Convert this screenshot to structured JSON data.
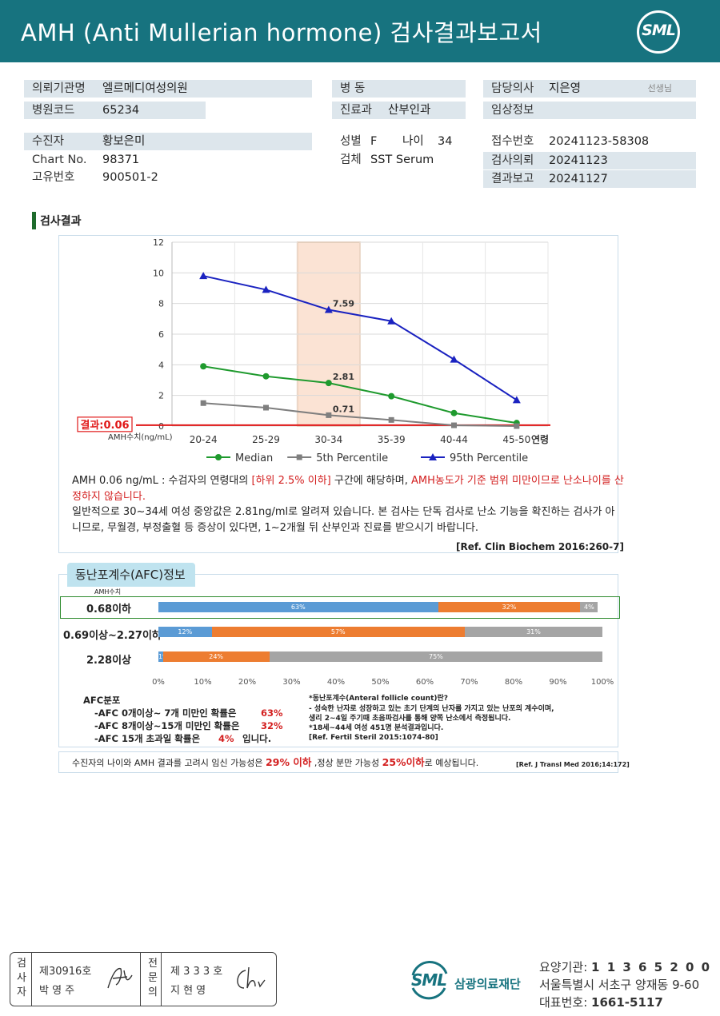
{
  "header": {
    "title": "AMH (Anti Mullerian hormone) 검사결과보고서",
    "logo": "SML"
  },
  "info": {
    "hospital_label": "의뢰기관명",
    "hospital": "엘르메디여성의원",
    "hospital_code_label": "병원코드",
    "hospital_code": "65234",
    "ward_label": "병  동",
    "dept_label": "진료과",
    "dept": "산부인과",
    "doctor_label": "담당의사",
    "doctor": "지은영",
    "doctor_suffix": "선생님",
    "clinical_label": "임상정보",
    "patient_label": "수진자",
    "patient": "황보은미",
    "chart_label": "Chart No.",
    "chart_no": "98371",
    "id_label": "고유번호",
    "id_no": "900501-2",
    "sex_label": "성별",
    "sex": "F",
    "age_label": "나이",
    "age": "34",
    "specimen_label": "검체",
    "specimen": "SST Serum",
    "receipt_label": "접수번호",
    "receipt_no": "20241123-58308",
    "request_label": "검사의뢰",
    "request_date": "20241123",
    "report_label": "결과보고",
    "report_date": "20241127"
  },
  "section_title": "검사결과",
  "chart_data": {
    "type": "line",
    "categories": [
      "20-24",
      "25-29",
      "30-34",
      "35-39",
      "40-44",
      "45-50"
    ],
    "xlabel": "연령",
    "ylabel": "AMH수치(ng/mL)",
    "ylim": [
      0,
      12
    ],
    "yticks": [
      0,
      2,
      4,
      6,
      8,
      10,
      12
    ],
    "highlight_category": "30-34",
    "result_label": "결과:0.06",
    "result_value": 0.06,
    "series": [
      {
        "name": "Median",
        "color": "#1f9a2e",
        "marker": "circle",
        "values": [
          3.9,
          3.25,
          2.81,
          1.95,
          0.85,
          0.2
        ]
      },
      {
        "name": "5th Percentile",
        "color": "#7f7f7f",
        "marker": "square",
        "values": [
          1.5,
          1.2,
          0.71,
          0.4,
          0.05,
          0.0
        ]
      },
      {
        "name": "95th Percentile",
        "color": "#1a22c0",
        "marker": "triangle",
        "values": [
          9.8,
          8.9,
          7.59,
          6.85,
          4.35,
          1.7
        ]
      }
    ],
    "annotations": [
      "7.59",
      "2.81",
      "0.71"
    ]
  },
  "comment": {
    "p1_a": "AMH  0.06 ng/mL : 수검자의 연령대의 ",
    "p1_b": "[하위 2.5% 이하]",
    "p1_c": " 구간에 해당하며, ",
    "p1_d": "AMH농도가 기준 범위 미만이므로 난소나이를 산정하지 않습니다.",
    "p2": "일반적으로 30~34세 여성 중앙값은 2.81ng/ml로 알려져 있습니다. 본 검사는 단독 검사로 난소 기능을 확진하는 검사가 아니므로, 무월경, 부정출혈 등 증상이 있다면, 1~2개월 뒤 산부인과 진료를 받으시기 바랍니다.",
    "ref": "[Ref. Clin Biochem 2016:260-7]"
  },
  "afc": {
    "title": "동난포계수(AFC)정보",
    "col_label": "AMH수치",
    "rows": [
      {
        "label": "0.68이하",
        "segments": [
          63,
          32,
          4
        ],
        "seg_labels": [
          "63%",
          "32%",
          "4%"
        ]
      },
      {
        "label": "0.69이상~2.27이하",
        "segments": [
          12,
          57,
          31
        ],
        "seg_labels": [
          "12%",
          "57%",
          "31%"
        ]
      },
      {
        "label": "2.28이상",
        "segments": [
          1,
          24,
          75
        ],
        "seg_labels": [
          "1%",
          "24%",
          "75%"
        ]
      }
    ],
    "colors": [
      "#5b9bd5",
      "#ed7d31",
      "#a5a5a5"
    ],
    "ticks": [
      "0%",
      "10%",
      "20%",
      "30%",
      "40%",
      "50%",
      "60%",
      "70%",
      "80%",
      "90%",
      "100%"
    ],
    "dist_title": "AFC분포",
    "dist1": "-AFC  0개이상~ 7개 미만인 확률은",
    "dist1_val": "63%",
    "dist2": "-AFC  8개이상~15개 미만인 확률은",
    "dist2_val": "32%",
    "dist3": "-AFC  15개 초과일 확률은",
    "dist3_val": "4%",
    "dist3_end": "입니다.",
    "def1": "*동난포계수(Anteral  follicle  count)란?",
    "def2": "- 성숙한 난자로 성장하고 있는 초기 단계의 난자를 가지고 있는 난포의 계수이며,",
    "def3": "  생리 2~4일 주기때 초음파검사를 통해 양쪽 난소에서 측정됩니다.",
    "def4": "*18세~44세 여성 451명 분석결과입니다.",
    "def5": "[Ref. Fertil Steril 2015:1074-80]"
  },
  "pregnancy": {
    "a": "수진자의  나이와 AMH 결과를 고려시 임신 가능성은 ",
    "b": "29% 이하",
    "c": " ,정상 분만 가능성 ",
    "d": "25%이하",
    "e": "로 예상됩니다.",
    "ref": "[Ref. J Transl Med 2016;14:172]"
  },
  "signature": {
    "tester_label": "검사자",
    "tester_no": "제30916호",
    "tester_name": "박  영  주",
    "specialist_label": "전문의",
    "specialist_no": "제 3 3 3 호",
    "specialist_name": "지  현  영"
  },
  "footer": {
    "logo": "SML",
    "org": "삼광의료재단",
    "code_label": "요양기관:",
    "code": "1 1 3 6 5 2 0 0",
    "address": "서울특별시 서초구 양재동 9-60",
    "phone_label": "대표번호:",
    "phone": "1661-5117"
  }
}
